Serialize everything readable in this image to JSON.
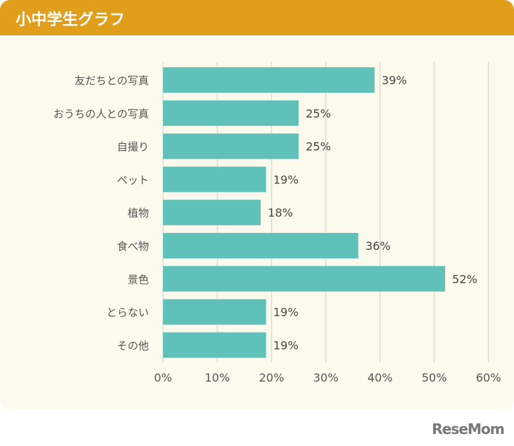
{
  "header": {
    "title": "小中学生グラフ"
  },
  "logo": "ReseMom",
  "chart_data": {
    "type": "bar",
    "orientation": "horizontal",
    "categories": [
      "友だちとの写真",
      "おうちの人との写真",
      "自撮り",
      "ペット",
      "植物",
      "食べ物",
      "景色",
      "とらない",
      "その他"
    ],
    "values": [
      39,
      25,
      25,
      19,
      18,
      36,
      52,
      19,
      19
    ],
    "data_labels": [
      "39%",
      "25%",
      "25%",
      "19%",
      "18%",
      "36%",
      "52%",
      "19%",
      "19%"
    ],
    "xlim": [
      0,
      60
    ],
    "xticks": [
      "0%",
      "10%",
      "20%",
      "30%",
      "40%",
      "50%",
      "60%"
    ],
    "grid": true,
    "bar_color": "#60C1B9",
    "title": "",
    "xlabel": "",
    "ylabel": ""
  }
}
